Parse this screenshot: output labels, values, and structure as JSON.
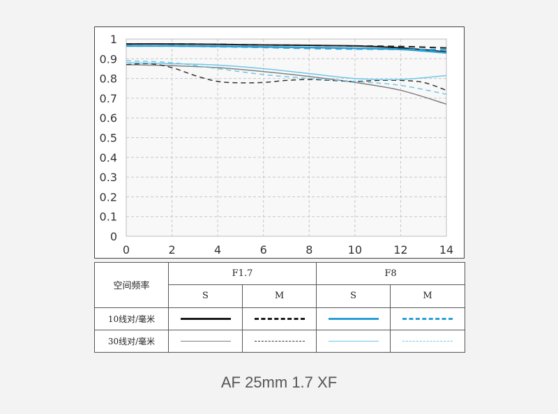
{
  "chart_data": {
    "type": "line",
    "xlim": [
      0,
      14
    ],
    "ylim": [
      0,
      1
    ],
    "x_ticks": [
      "0",
      "2",
      "4",
      "6",
      "8",
      "10",
      "12",
      "14"
    ],
    "y_ticks": [
      "0",
      "0.1",
      "0.2",
      "0.3",
      "0.4",
      "0.5",
      "0.6",
      "0.7",
      "0.8",
      "0.9",
      "1"
    ],
    "grid": true,
    "series": [
      {
        "aperture": "F1.7",
        "freq": "10",
        "type": "S",
        "color": "#1a1a1a",
        "dash": "solid",
        "width": 2,
        "x": [
          0,
          2,
          4,
          6,
          8,
          10,
          12,
          14
        ],
        "y": [
          0.975,
          0.975,
          0.973,
          0.97,
          0.968,
          0.965,
          0.955,
          0.935
        ]
      },
      {
        "aperture": "F1.7",
        "freq": "10",
        "type": "M",
        "color": "#1a1a1a",
        "dash": "dashed",
        "width": 2,
        "x": [
          0,
          2,
          4,
          6,
          8,
          10,
          12,
          14
        ],
        "y": [
          0.975,
          0.975,
          0.973,
          0.97,
          0.968,
          0.965,
          0.962,
          0.955
        ]
      },
      {
        "aperture": "F8",
        "freq": "10",
        "type": "S",
        "color": "#2a9fd6",
        "dash": "solid",
        "width": 2.5,
        "x": [
          0,
          2,
          4,
          6,
          8,
          10,
          12,
          14
        ],
        "y": [
          0.965,
          0.965,
          0.963,
          0.96,
          0.957,
          0.953,
          0.948,
          0.93
        ]
      },
      {
        "aperture": "F8",
        "freq": "10",
        "type": "M",
        "color": "#2a9fd6",
        "dash": "dashed",
        "width": 2.5,
        "x": [
          0,
          2,
          4,
          6,
          8,
          10,
          12,
          14
        ],
        "y": [
          0.965,
          0.965,
          0.962,
          0.958,
          0.953,
          0.95,
          0.948,
          0.945
        ]
      },
      {
        "aperture": "F1.7",
        "freq": "30",
        "type": "S",
        "color": "#7f7f7f",
        "dash": "solid",
        "width": 1.5,
        "x": [
          0,
          2,
          4,
          6,
          8,
          10,
          12,
          14
        ],
        "y": [
          0.87,
          0.865,
          0.855,
          0.835,
          0.81,
          0.78,
          0.74,
          0.67
        ]
      },
      {
        "aperture": "F1.7",
        "freq": "30",
        "type": "M",
        "color": "#333333",
        "dash": "dashed",
        "width": 1.5,
        "x": [
          0,
          1,
          2,
          3,
          4,
          5,
          6,
          7,
          8,
          9,
          10,
          11,
          12,
          13,
          14
        ],
        "y": [
          0.87,
          0.875,
          0.855,
          0.815,
          0.785,
          0.778,
          0.78,
          0.79,
          0.795,
          0.79,
          0.785,
          0.79,
          0.79,
          0.78,
          0.74
        ]
      },
      {
        "aperture": "F8",
        "freq": "30",
        "type": "S",
        "color": "#6ec6e8",
        "dash": "solid",
        "width": 1.5,
        "x": [
          0,
          2,
          4,
          6,
          8,
          10,
          12,
          14
        ],
        "y": [
          0.88,
          0.875,
          0.868,
          0.85,
          0.825,
          0.8,
          0.795,
          0.815
        ]
      },
      {
        "aperture": "F8",
        "freq": "30",
        "type": "M",
        "color": "#6ec6e8",
        "dash": "dashed",
        "width": 1.5,
        "x": [
          0,
          2,
          4,
          6,
          8,
          10,
          12,
          14
        ],
        "y": [
          0.89,
          0.88,
          0.85,
          0.82,
          0.8,
          0.785,
          0.765,
          0.72
        ]
      }
    ]
  },
  "legend": {
    "header_label": "空间频率",
    "apertures": [
      "F1.7",
      "F8"
    ],
    "types": [
      "S",
      "M",
      "S",
      "M"
    ],
    "rows": [
      {
        "label": "10线对/毫米"
      },
      {
        "label": "30线对/毫米"
      }
    ]
  },
  "caption": "AF 25mm 1.7 XF"
}
